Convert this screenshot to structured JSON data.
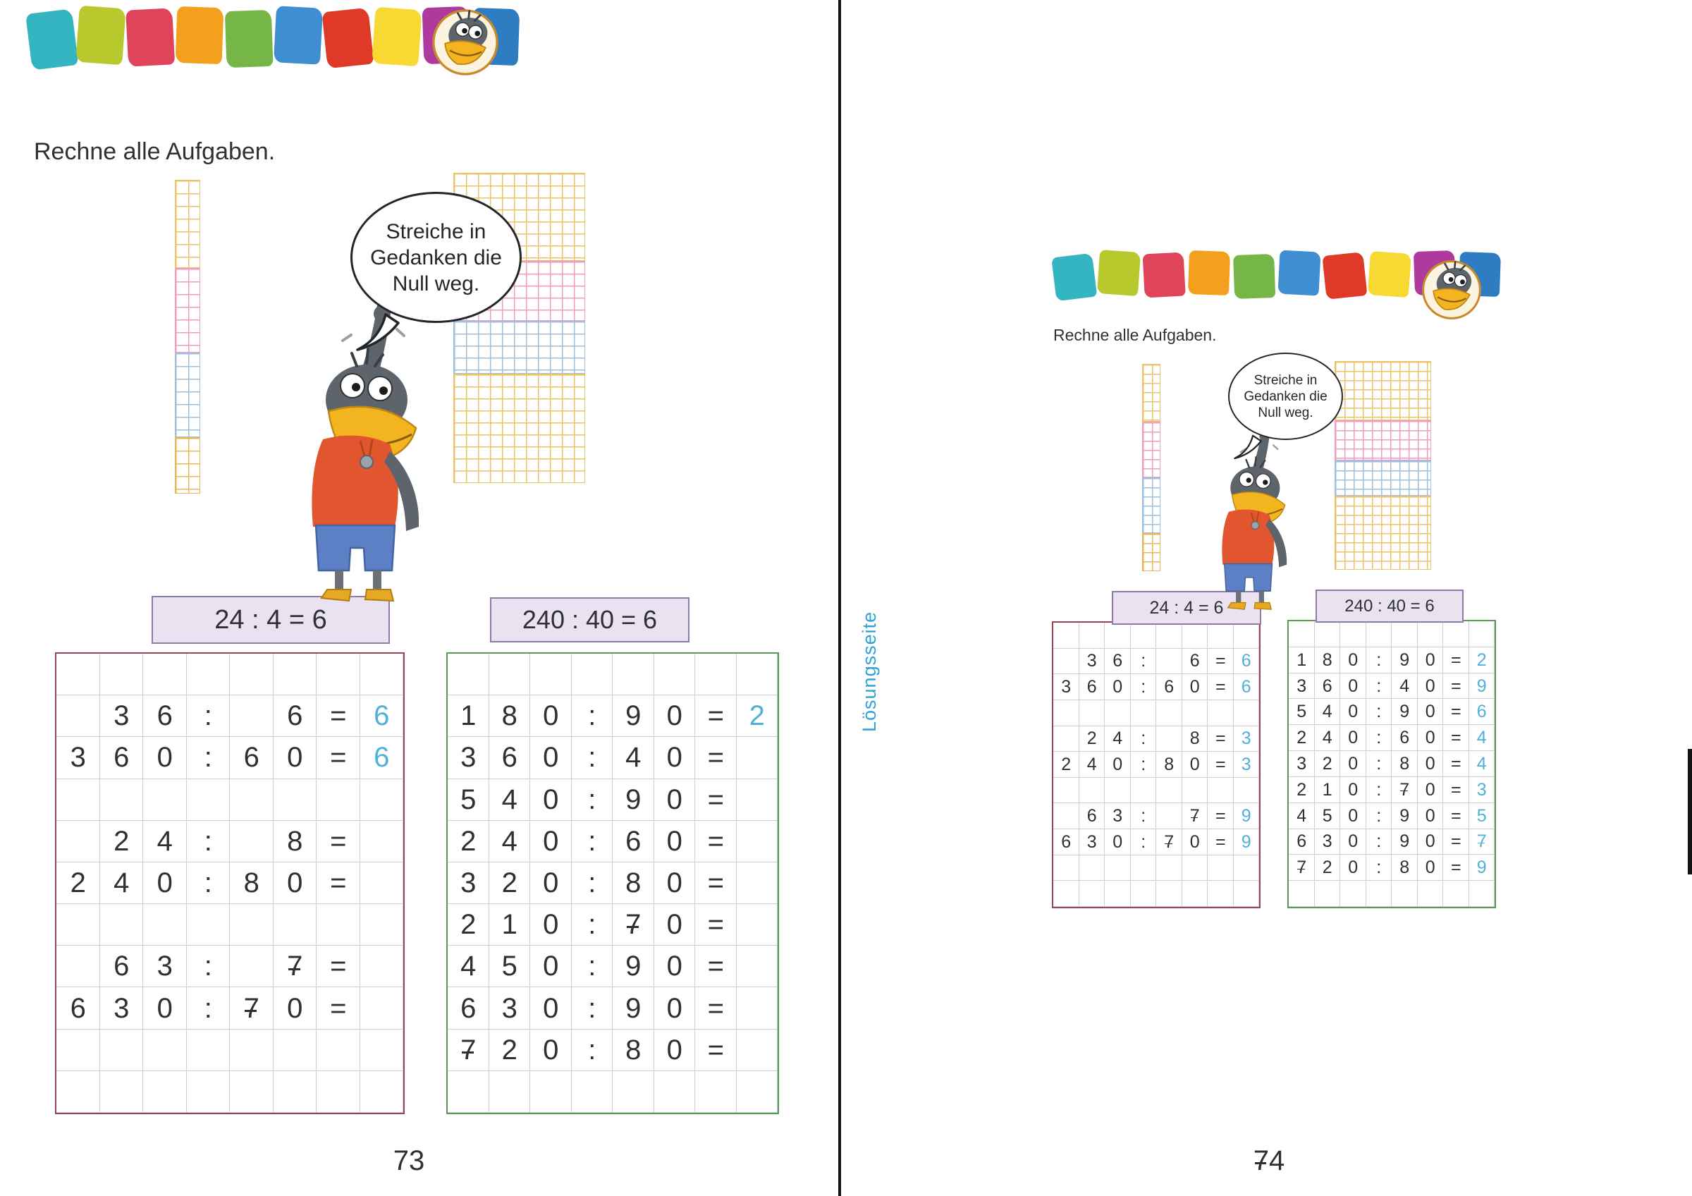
{
  "colors": {
    "answer-blue": "#4fb0d9",
    "maroon-border": "#9a4553",
    "green-border": "#5a9a54",
    "example-fill": "#eae2f1",
    "example-border": "#8f79a8",
    "losung-blue": "#2ea3d3",
    "ink": "#2d3134",
    "grid-line": "#cdd0d5",
    "decor-yellow": "#eac36a",
    "decor-pink": "#ef9ec2",
    "decor-blue": "#9cc0de",
    "decor-orange": "#e9b75a"
  },
  "header": {
    "squares": [
      "#35b4c2",
      "#b8c92e",
      "#e0445a",
      "#f3a01e",
      "#76b547",
      "#3f8ed2",
      "#df3a28",
      "#f8d832",
      "#ae3a9e",
      "#2e7dc2"
    ]
  },
  "icons": {
    "badge": "crow-head-icon",
    "mascot": "crow-mascot-illustration"
  },
  "page_left": {
    "instruction": "Rechne alle Aufgaben.",
    "speech_lines": [
      "Streiche in",
      "Gedanken die",
      "Null weg."
    ],
    "example_left": "24 : 4 = 6",
    "example_right": "240 : 40 = 6",
    "page_number": "73",
    "grid_left": [
      [
        "",
        "",
        "",
        "",
        "",
        "",
        "",
        ""
      ],
      [
        "",
        "3",
        "6",
        ":",
        "",
        "6",
        "=",
        "6"
      ],
      [
        "3",
        "6",
        "0",
        ":",
        "6",
        "0",
        "=",
        "6"
      ],
      [
        "",
        "",
        "",
        "",
        "",
        "",
        "",
        ""
      ],
      [
        "",
        "2",
        "4",
        ":",
        "",
        "8",
        "=",
        ""
      ],
      [
        "2",
        "4",
        "0",
        ":",
        "8",
        "0",
        "=",
        ""
      ],
      [
        "",
        "",
        "",
        "",
        "",
        "",
        "",
        ""
      ],
      [
        "",
        "6",
        "3",
        ":",
        "",
        "7̶",
        "=",
        ""
      ],
      [
        "6",
        "3",
        "0",
        ":",
        "7̶",
        "0",
        "=",
        ""
      ],
      [
        "",
        "",
        "",
        "",
        "",
        "",
        "",
        ""
      ],
      [
        "",
        "",
        "",
        "",
        "",
        "",
        "",
        ""
      ]
    ],
    "grid_right": [
      [
        "",
        "",
        "",
        "",
        "",
        "",
        "",
        ""
      ],
      [
        "1",
        "8",
        "0",
        ":",
        "9",
        "0",
        "=",
        "2"
      ],
      [
        "3",
        "6",
        "0",
        ":",
        "4",
        "0",
        "=",
        ""
      ],
      [
        "5",
        "4",
        "0",
        ":",
        "9",
        "0",
        "=",
        ""
      ],
      [
        "2",
        "4",
        "0",
        ":",
        "6",
        "0",
        "=",
        ""
      ],
      [
        "3",
        "2",
        "0",
        ":",
        "8",
        "0",
        "=",
        ""
      ],
      [
        "2",
        "1",
        "0",
        ":",
        "7̶",
        "0",
        "=",
        ""
      ],
      [
        "4",
        "5",
        "0",
        ":",
        "9",
        "0",
        "=",
        ""
      ],
      [
        "6",
        "3",
        "0",
        ":",
        "9",
        "0",
        "=",
        ""
      ],
      [
        "7̶",
        "2",
        "0",
        ":",
        "8",
        "0",
        "=",
        ""
      ],
      [
        "",
        "",
        "",
        "",
        "",
        "",
        "",
        ""
      ]
    ]
  },
  "page_right": {
    "sidebar_label": "Lösungsseite",
    "instruction": "Rechne alle Aufgaben.",
    "speech_lines": [
      "Streiche in",
      "Gedanken die",
      "Null weg."
    ],
    "example_left": "24 : 4 = 6",
    "example_right": "240 : 40 = 6",
    "page_number": "7̶4",
    "grid_left": [
      [
        "",
        "",
        "",
        "",
        "",
        "",
        "",
        ""
      ],
      [
        "",
        "3",
        "6",
        ":",
        "",
        "6",
        "=",
        "6"
      ],
      [
        "3",
        "6",
        "0",
        ":",
        "6",
        "0",
        "=",
        "6"
      ],
      [
        "",
        "",
        "",
        "",
        "",
        "",
        "",
        ""
      ],
      [
        "",
        "2",
        "4",
        ":",
        "",
        "8",
        "=",
        "3"
      ],
      [
        "2",
        "4",
        "0",
        ":",
        "8",
        "0",
        "=",
        "3"
      ],
      [
        "",
        "",
        "",
        "",
        "",
        "",
        "",
        ""
      ],
      [
        "",
        "6",
        "3",
        ":",
        "",
        "7̶",
        "=",
        "9"
      ],
      [
        "6",
        "3",
        "0",
        ":",
        "7̶",
        "0",
        "=",
        "9"
      ],
      [
        "",
        "",
        "",
        "",
        "",
        "",
        "",
        ""
      ],
      [
        "",
        "",
        "",
        "",
        "",
        "",
        "",
        ""
      ]
    ],
    "grid_right": [
      [
        "",
        "",
        "",
        "",
        "",
        "",
        "",
        ""
      ],
      [
        "1",
        "8",
        "0",
        ":",
        "9",
        "0",
        "=",
        "2"
      ],
      [
        "3",
        "6",
        "0",
        ":",
        "4",
        "0",
        "=",
        "9"
      ],
      [
        "5",
        "4",
        "0",
        ":",
        "9",
        "0",
        "=",
        "6"
      ],
      [
        "2",
        "4",
        "0",
        ":",
        "6",
        "0",
        "=",
        "4"
      ],
      [
        "3",
        "2",
        "0",
        ":",
        "8",
        "0",
        "=",
        "4"
      ],
      [
        "2",
        "1",
        "0",
        ":",
        "7̶",
        "0",
        "=",
        "3"
      ],
      [
        "4",
        "5",
        "0",
        ":",
        "9",
        "0",
        "=",
        "5"
      ],
      [
        "6",
        "3",
        "0",
        ":",
        "9",
        "0",
        "=",
        "7̶"
      ],
      [
        "7̶",
        "2",
        "0",
        ":",
        "8",
        "0",
        "=",
        "9"
      ],
      [
        "",
        "",
        "",
        "",
        "",
        "",
        "",
        ""
      ]
    ]
  }
}
